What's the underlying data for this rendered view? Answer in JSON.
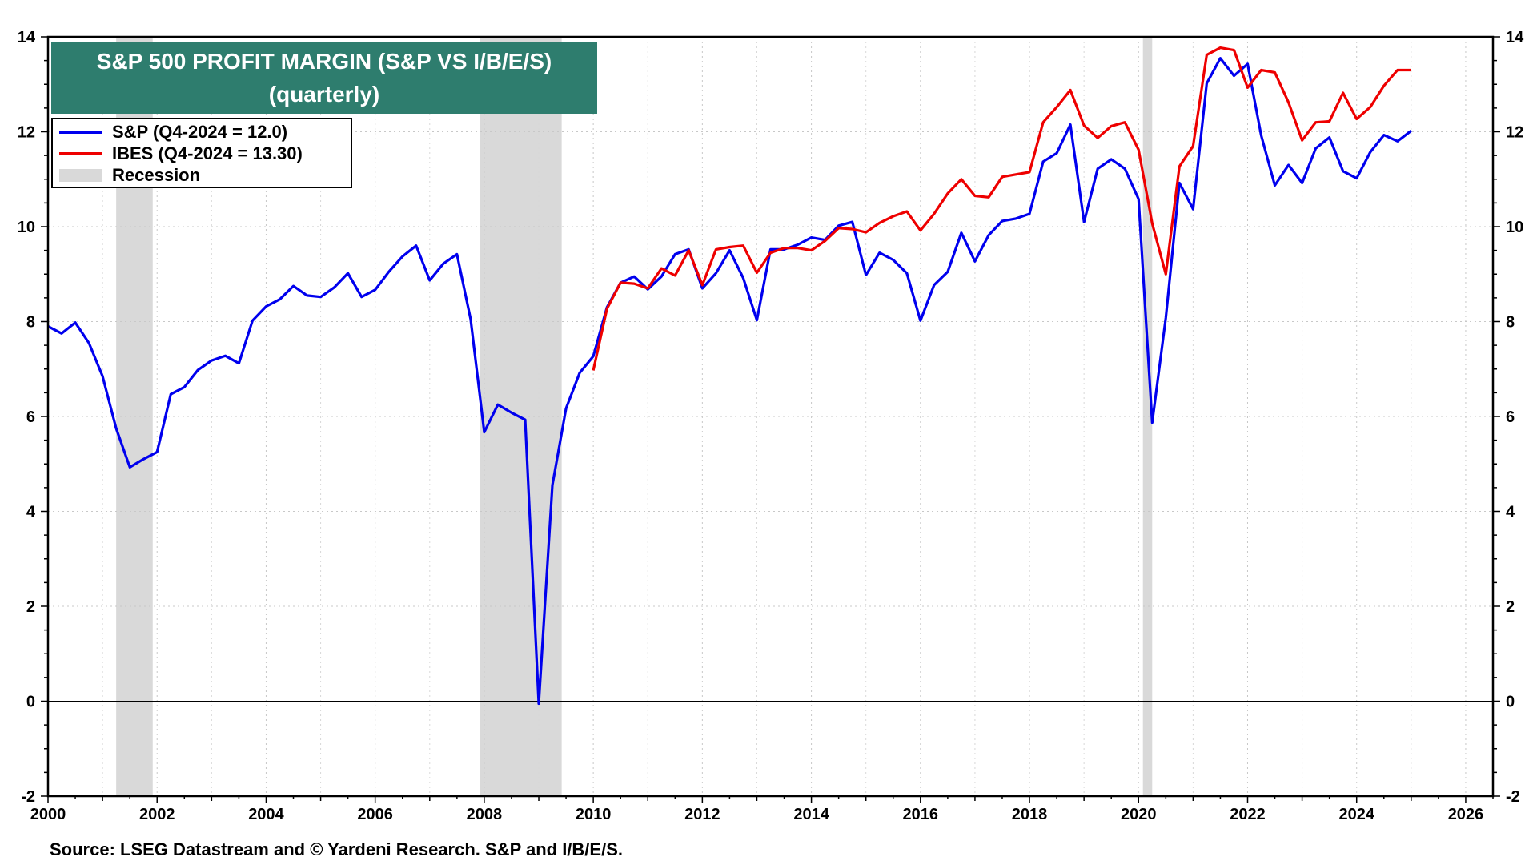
{
  "chart_data": {
    "type": "line",
    "title": "S&P 500 PROFIT MARGIN (S&P VS I/B/E/S)",
    "subtitle": "(quarterly)",
    "xlim": [
      2000,
      2026.5
    ],
    "ylim": [
      -2,
      14
    ],
    "x_ticks": [
      "2000",
      "2002",
      "2004",
      "2006",
      "2008",
      "2010",
      "2012",
      "2014",
      "2016",
      "2018",
      "2020",
      "2022",
      "2024",
      "2026"
    ],
    "y_ticks": [
      "-2",
      "0",
      "2",
      "4",
      "6",
      "8",
      "10",
      "12",
      "14"
    ],
    "grid": "dotted",
    "legend_position": "top-left",
    "recessions": [
      [
        2001.25,
        2001.92
      ],
      [
        2007.92,
        2009.42
      ],
      [
        2020.08,
        2020.25
      ]
    ],
    "series": [
      {
        "name": "S&P (Q4-2024 = 12.0)",
        "color": "#0000ee",
        "x": [
          2000.0,
          2000.25,
          2000.5,
          2000.75,
          2001.0,
          2001.25,
          2001.5,
          2001.75,
          2002.0,
          2002.25,
          2002.5,
          2002.75,
          2003.0,
          2003.25,
          2003.5,
          2003.75,
          2004.0,
          2004.25,
          2004.5,
          2004.75,
          2005.0,
          2005.25,
          2005.5,
          2005.75,
          2006.0,
          2006.25,
          2006.5,
          2006.75,
          2007.0,
          2007.25,
          2007.5,
          2007.75,
          2008.0,
          2008.25,
          2008.5,
          2008.75,
          2009.0,
          2009.25,
          2009.5,
          2009.75,
          2010.0,
          2010.25,
          2010.5,
          2010.75,
          2011.0,
          2011.25,
          2011.5,
          2011.75,
          2012.0,
          2012.25,
          2012.5,
          2012.75,
          2013.0,
          2013.25,
          2013.5,
          2013.75,
          2014.0,
          2014.25,
          2014.5,
          2014.75,
          2015.0,
          2015.25,
          2015.5,
          2015.75,
          2016.0,
          2016.25,
          2016.5,
          2016.75,
          2017.0,
          2017.25,
          2017.5,
          2017.75,
          2018.0,
          2018.25,
          2018.5,
          2018.75,
          2019.0,
          2019.25,
          2019.5,
          2019.75,
          2020.0,
          2020.25,
          2020.5,
          2020.75,
          2021.0,
          2021.25,
          2021.5,
          2021.75,
          2022.0,
          2022.25,
          2022.5,
          2022.75,
          2023.0,
          2023.25,
          2023.5,
          2023.75,
          2024.0,
          2024.25,
          2024.5,
          2024.75,
          2025.0
        ],
        "values": [
          7.9,
          7.75,
          7.98,
          7.55,
          6.85,
          5.75,
          4.93,
          5.1,
          5.25,
          6.47,
          6.62,
          6.98,
          7.18,
          7.28,
          7.12,
          8.02,
          8.32,
          8.47,
          8.75,
          8.55,
          8.52,
          8.72,
          9.02,
          8.52,
          8.67,
          9.05,
          9.37,
          9.6,
          8.87,
          9.22,
          9.42,
          8.05,
          5.67,
          6.25,
          6.08,
          5.93,
          -0.05,
          4.55,
          6.17,
          6.92,
          7.27,
          8.3,
          8.82,
          8.95,
          8.68,
          8.95,
          9.42,
          9.52,
          8.7,
          9.02,
          9.5,
          8.92,
          8.03,
          9.52,
          9.52,
          9.62,
          9.77,
          9.72,
          10.02,
          10.1,
          8.98,
          9.45,
          9.3,
          9.02,
          8.02,
          8.77,
          9.05,
          9.87,
          9.27,
          9.82,
          10.12,
          10.17,
          10.27,
          11.37,
          11.55,
          12.15,
          10.1,
          11.22,
          11.42,
          11.22,
          10.58,
          5.87,
          8.08,
          10.92,
          10.37,
          13.02,
          13.55,
          13.18,
          13.43,
          11.92,
          10.87,
          11.3,
          10.92,
          11.65,
          11.88,
          11.17,
          11.02,
          11.57,
          11.93,
          11.8,
          12.02
        ]
      },
      {
        "name": "IBES (Q4-2024 = 13.30)",
        "color": "#ee0000",
        "x": [
          2010.0,
          2010.25,
          2010.5,
          2010.75,
          2011.0,
          2011.25,
          2011.5,
          2011.75,
          2012.0,
          2012.25,
          2012.5,
          2012.75,
          2013.0,
          2013.25,
          2013.5,
          2013.75,
          2014.0,
          2014.25,
          2014.5,
          2014.75,
          2015.0,
          2015.25,
          2015.5,
          2015.75,
          2016.0,
          2016.25,
          2016.5,
          2016.75,
          2017.0,
          2017.25,
          2017.5,
          2017.75,
          2018.0,
          2018.25,
          2018.5,
          2018.75,
          2019.0,
          2019.25,
          2019.5,
          2019.75,
          2020.0,
          2020.25,
          2020.5,
          2020.75,
          2021.0,
          2021.25,
          2021.5,
          2021.75,
          2022.0,
          2022.25,
          2022.5,
          2022.75,
          2023.0,
          2023.25,
          2023.5,
          2023.75,
          2024.0,
          2024.25,
          2024.5,
          2024.75,
          2025.0
        ],
        "values": [
          6.97,
          8.27,
          8.82,
          8.8,
          8.7,
          9.12,
          8.97,
          9.5,
          8.77,
          9.52,
          9.57,
          9.6,
          9.03,
          9.45,
          9.55,
          9.55,
          9.5,
          9.7,
          9.97,
          9.95,
          9.88,
          10.08,
          10.22,
          10.32,
          9.92,
          10.27,
          10.7,
          11.0,
          10.65,
          10.62,
          11.05,
          11.1,
          11.15,
          12.2,
          12.52,
          12.88,
          12.13,
          11.87,
          12.12,
          12.2,
          11.62,
          10.07,
          9.0,
          11.27,
          11.7,
          13.62,
          13.77,
          13.72,
          12.93,
          13.3,
          13.25,
          12.62,
          11.82,
          12.2,
          12.22,
          12.82,
          12.27,
          12.52,
          12.97,
          13.3,
          13.3
        ]
      }
    ]
  },
  "legend": {
    "items": [
      {
        "label": "S&P (Q4-2024 = 12.0)",
        "color": "#0000ee"
      },
      {
        "label": "IBES (Q4-2024 = 13.30)",
        "color": "#ee0000"
      },
      {
        "label": "Recession",
        "color": "#d9d9d9"
      }
    ]
  },
  "source": "Source: LSEG Datastream and © Yardeni Research. S&P and I/B/E/S."
}
